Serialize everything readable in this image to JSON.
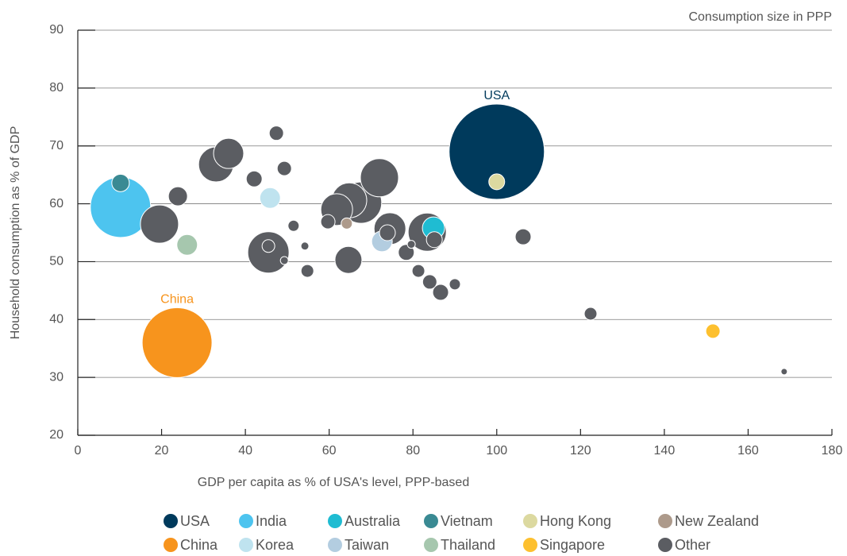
{
  "chart_data": {
    "type": "scatter",
    "annotation": "Consumption size in PPP",
    "x_label": "GDP per capita as % of USA's level, PPP-based",
    "y_label": "Household consumption as % of GDP",
    "xlim": [
      0,
      180
    ],
    "xticks": [
      0,
      20,
      40,
      60,
      80,
      100,
      120,
      140,
      160,
      180
    ],
    "ylim": [
      20,
      90
    ],
    "yticks": [
      20,
      30,
      40,
      50,
      60,
      70,
      80,
      90
    ],
    "grid": true,
    "labeled_series": [
      "USA",
      "China"
    ],
    "series": [
      {
        "name": "USA",
        "color": "#003a5c",
        "x": [
          100
        ],
        "values": [
          69
        ],
        "sizes": [
          60
        ]
      },
      {
        "name": "India",
        "color": "#4dc4ef",
        "x": [
          10.2
        ],
        "values": [
          59.4
        ],
        "sizes": [
          38
        ]
      },
      {
        "name": "Australia",
        "color": "#1fbcd2",
        "x": [
          84.9
        ],
        "values": [
          55.8
        ],
        "sizes": [
          14
        ]
      },
      {
        "name": "Vietnam",
        "color": "#3a8a93",
        "x": [
          10.2
        ],
        "values": [
          63.6
        ],
        "sizes": [
          11
        ]
      },
      {
        "name": "Hong Kong",
        "color": "#dcd9a0",
        "x": [
          100
        ],
        "values": [
          63.8
        ],
        "sizes": [
          10
        ]
      },
      {
        "name": "New Zealand",
        "color": "#ad9a8b",
        "x": [
          64.2
        ],
        "values": [
          56.6
        ],
        "sizes": [
          7
        ]
      },
      {
        "name": "China",
        "color": "#f7941d",
        "x": [
          23.7
        ],
        "values": [
          36
        ],
        "sizes": [
          44
        ]
      },
      {
        "name": "Korea",
        "color": "#bfe3ef",
        "x": [
          45.9
        ],
        "values": [
          61
        ],
        "sizes": [
          13
        ]
      },
      {
        "name": "Taiwan",
        "color": "#b3cde0",
        "x": [
          72.6
        ],
        "values": [
          53.5
        ],
        "sizes": [
          13
        ]
      },
      {
        "name": "Thailand",
        "color": "#a6c7ae",
        "x": [
          26.1
        ],
        "values": [
          52.9
        ],
        "sizes": [
          13
        ]
      },
      {
        "name": "Singapore",
        "color": "#fdc02f",
        "x": [
          151.6
        ],
        "values": [
          38
        ],
        "sizes": [
          9
        ]
      },
      {
        "name": "Other",
        "color": "#5b5d62",
        "x": [
          19.5,
          23.9,
          33.0,
          36.0,
          42.1,
          47.4,
          49.3,
          45.5,
          45.5,
          49.3,
          51.5,
          54.2,
          54.8,
          59.7,
          61.8,
          64.8,
          67.6,
          72.0,
          64.6,
          74.5,
          73.9,
          78.4,
          79.6,
          81.3,
          84.0,
          83.4,
          85.1,
          86.6,
          90.0,
          106.3,
          122.4,
          168.6
        ],
        "values": [
          56.5,
          61.3,
          66.8,
          68.7,
          64.3,
          72.2,
          66.1,
          51.6,
          52.7,
          50.2,
          56.2,
          52.7,
          48.4,
          56.9,
          59.0,
          60.6,
          60.2,
          64.5,
          50.3,
          55.7,
          55.0,
          51.6,
          53.0,
          48.4,
          46.5,
          55.1,
          53.8,
          44.7,
          46.1,
          54.3,
          41.0,
          31.0
        ],
        "sizes": [
          24,
          12,
          22,
          19,
          10,
          9,
          9,
          26,
          8,
          5,
          7,
          5,
          8,
          9,
          20,
          22,
          26,
          24,
          17,
          20,
          10,
          10,
          5,
          8,
          9,
          24,
          10,
          10,
          7,
          10,
          8,
          4
        ]
      }
    ]
  }
}
